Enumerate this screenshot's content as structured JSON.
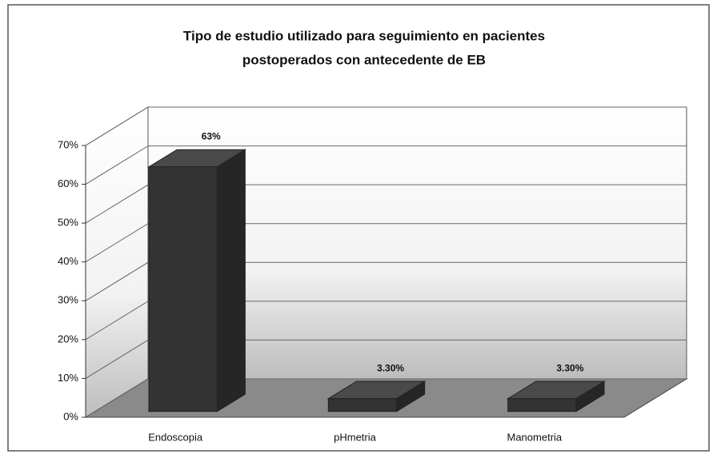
{
  "chart_data": {
    "type": "bar3d",
    "title": [
      "Tipo de estudio utilizado para seguimiento en pacientes",
      "postoperados con antecedente de EB"
    ],
    "categories": [
      "Endoscopia",
      "pHmetria",
      "Manometria"
    ],
    "values": [
      63,
      3.3,
      3.3
    ],
    "value_labels": [
      "63%",
      "3.30%",
      "3.30%"
    ],
    "color": "#333333",
    "ylim": [
      0,
      70
    ],
    "yticks": [
      {
        "value": 0,
        "label": "0%"
      },
      {
        "value": 10,
        "label": "10%"
      },
      {
        "value": 20,
        "label": "20%"
      },
      {
        "value": 30,
        "label": "30%"
      },
      {
        "value": 40,
        "label": "40%"
      },
      {
        "value": 50,
        "label": "50%"
      },
      {
        "value": 60,
        "label": "60%"
      },
      {
        "value": 70,
        "label": "70%"
      }
    ],
    "grid": true
  }
}
